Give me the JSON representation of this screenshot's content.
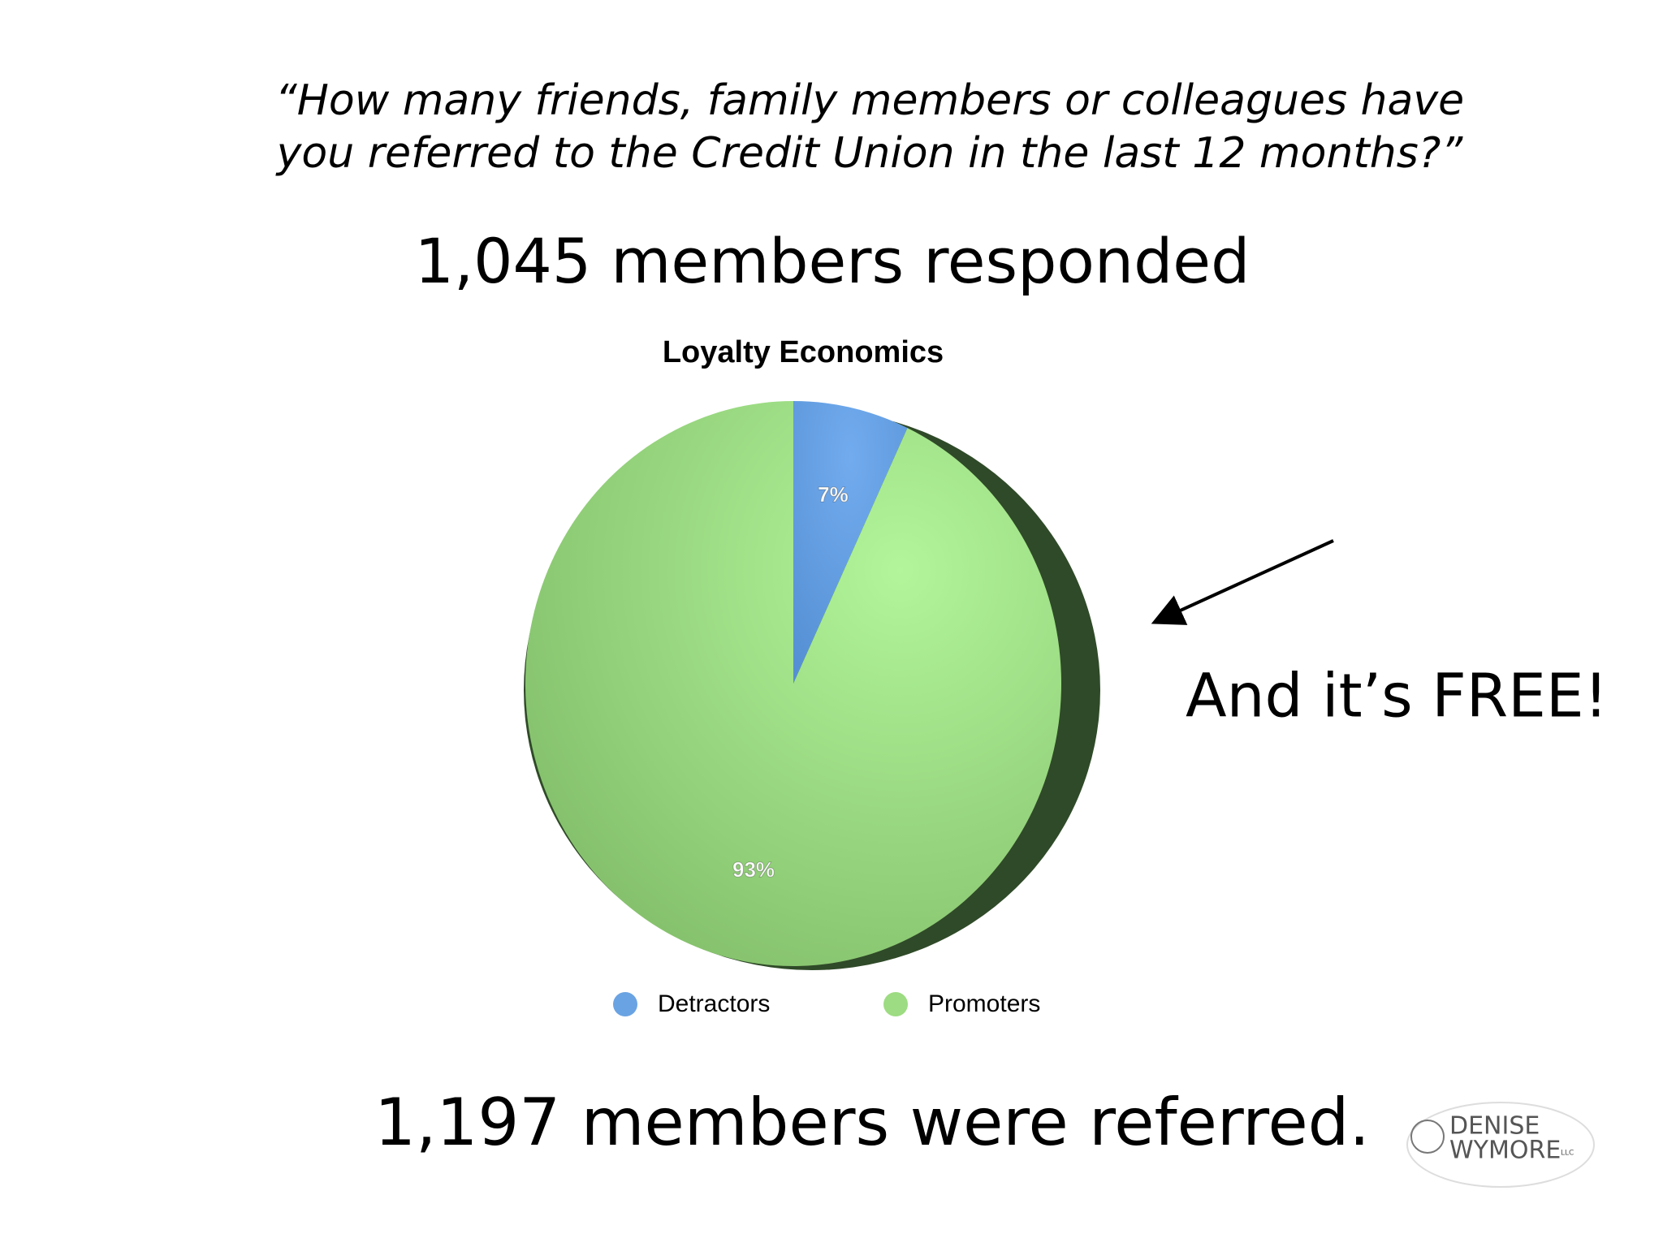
{
  "quote_lines": [
    "“How many friends, family members or colleagues have",
    "you referred to the Credit Union in the last 12 months?”"
  ],
  "headline": "1,045 members responded",
  "callout": "And it’s FREE!",
  "footer": "1,197 members were referred.",
  "logo": {
    "line1": "DENISE",
    "line2": "WYMORE",
    "suffix": "LLC"
  },
  "chart_data": {
    "type": "pie",
    "title": "Loyalty Economics",
    "categories": [
      "Detractors",
      "Promoters"
    ],
    "values": [
      7,
      93
    ],
    "value_labels": [
      "7%",
      "93%"
    ],
    "colors": [
      "#6aa3e3",
      "#9ddc82"
    ]
  }
}
